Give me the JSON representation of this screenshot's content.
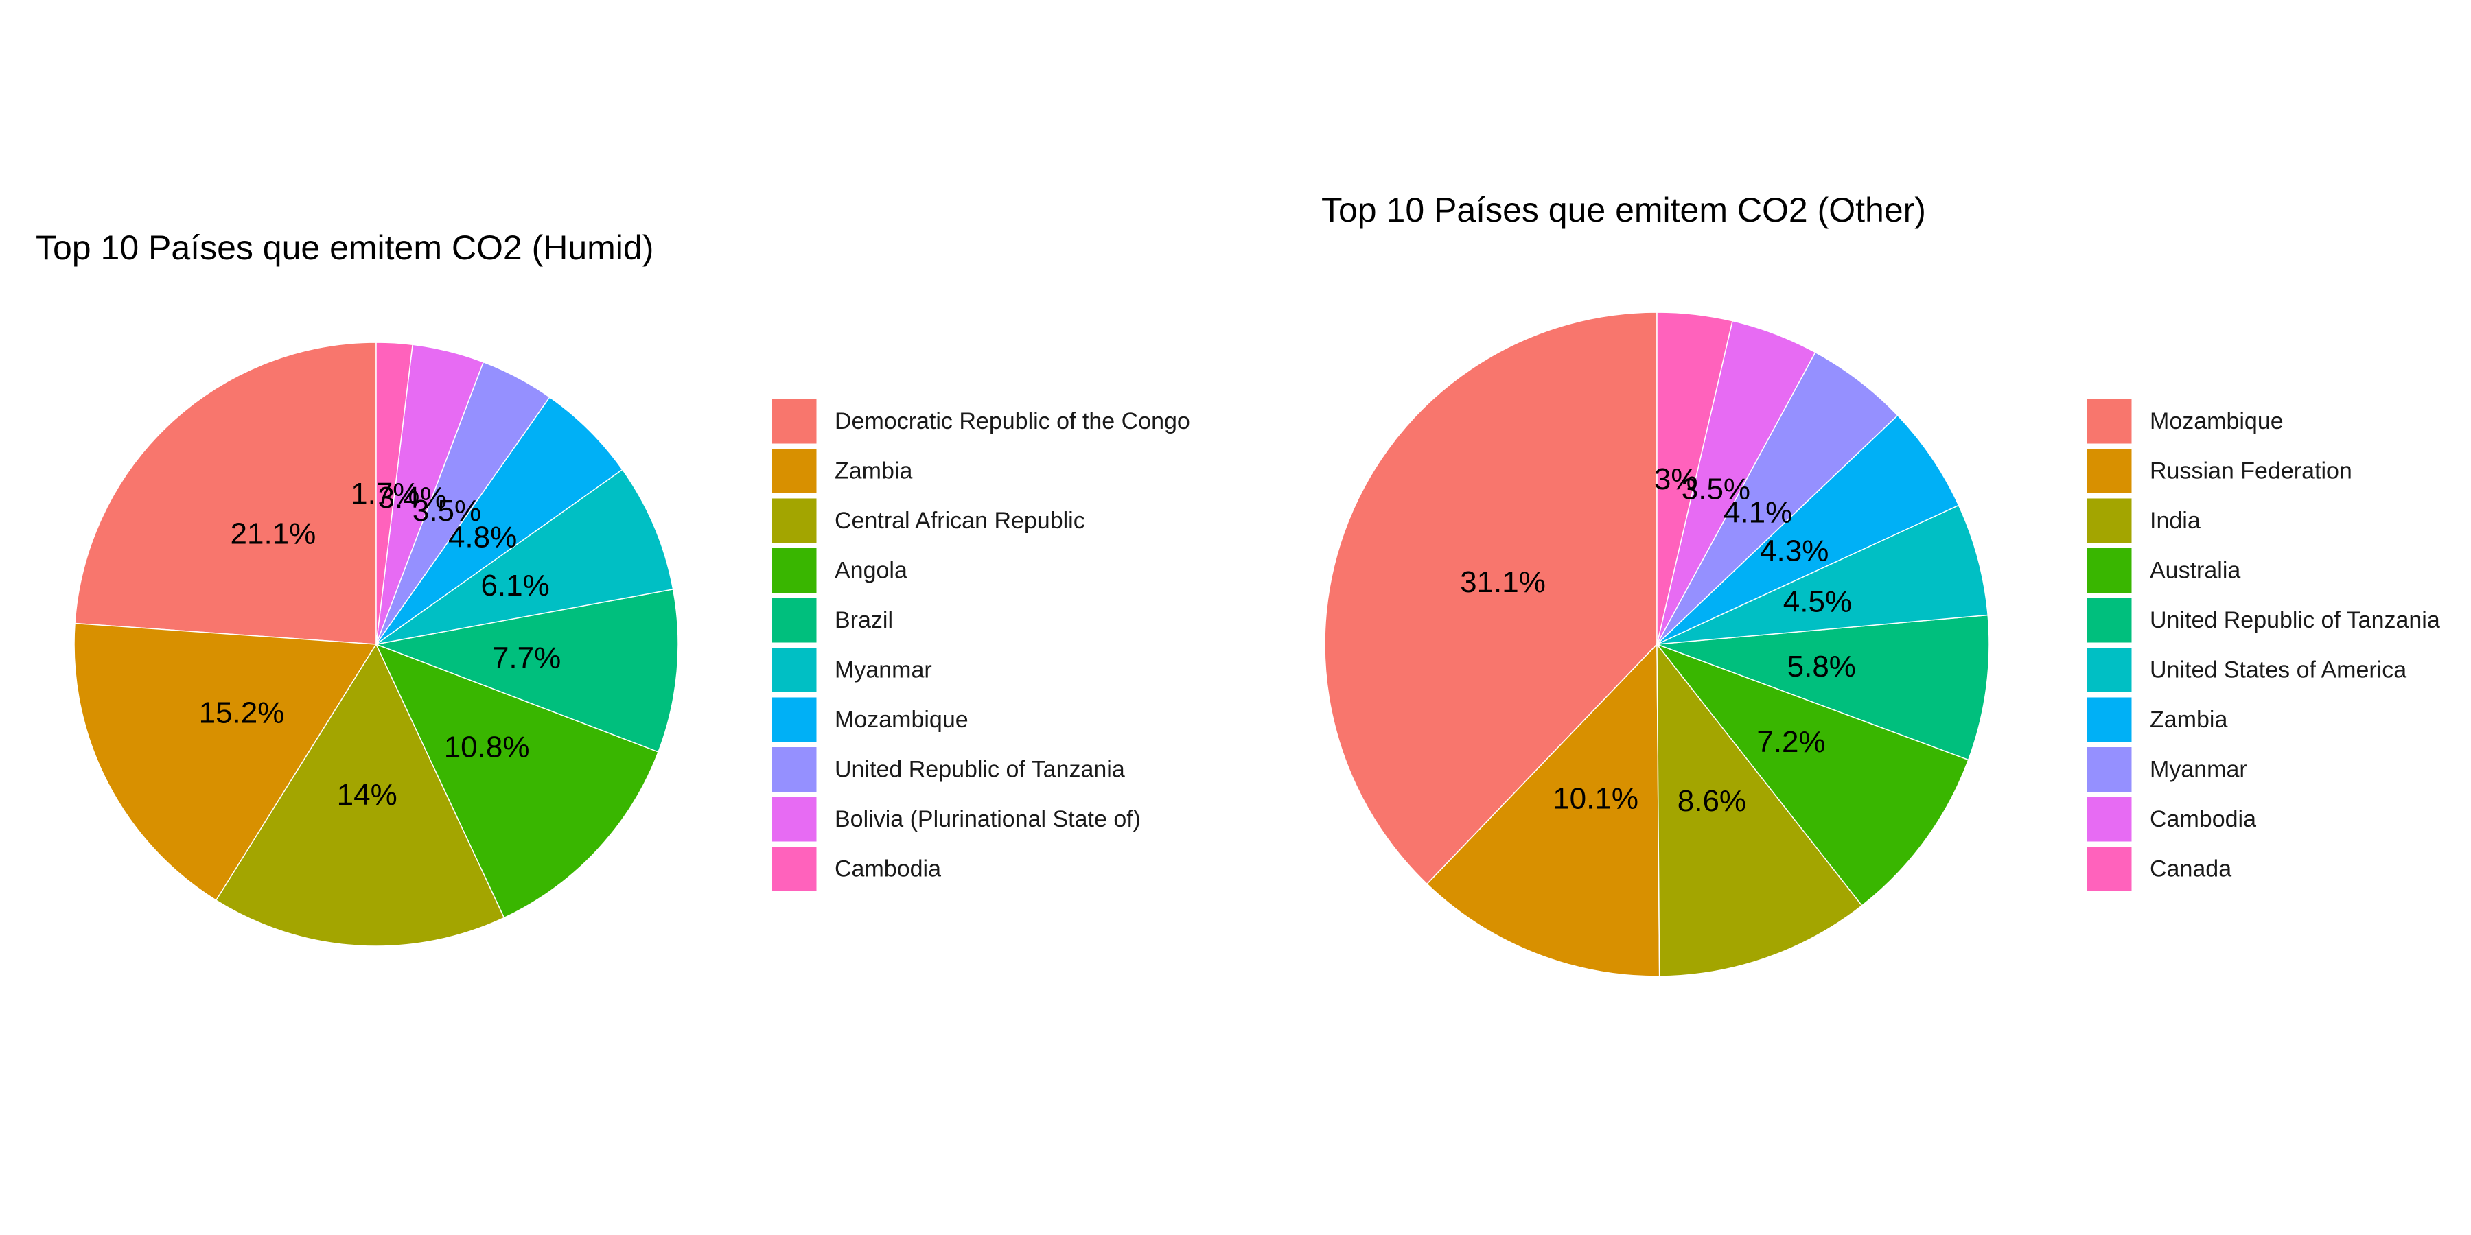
{
  "chart_data": [
    {
      "type": "pie",
      "title": "Top 10 Países que emitem CO2 (Humid)",
      "categories": [
        "Democratic Republic of the Congo",
        "Zambia",
        "Central African Republic",
        "Angola",
        "Brazil",
        "Myanmar",
        "Mozambique",
        "United Republic of Tanzania",
        "Bolivia (Plurinational State of)",
        "Cambodia"
      ],
      "values": [
        21.1,
        15.2,
        14,
        10.8,
        7.7,
        6.1,
        4.8,
        3.5,
        3.4,
        1.7
      ],
      "labels": [
        "21.1%",
        "15.2%",
        "14%",
        "10.8%",
        "7.7%",
        "6.1%",
        "4.8%",
        "3.5%",
        "3.4%",
        "1.7%"
      ],
      "colors": [
        "#F8766D",
        "#D89000",
        "#A3A500",
        "#39B600",
        "#00BF7D",
        "#00BFC4",
        "#00B0F6",
        "#9590FF",
        "#E76BF3",
        "#FF62BC"
      ],
      "legend": "right"
    },
    {
      "type": "pie",
      "title": "Top 10 Países que emitem CO2 (Other)",
      "categories": [
        "Mozambique",
        "Russian Federation",
        "India",
        "Australia",
        "United Republic of Tanzania",
        "United States of America",
        "Zambia",
        "Myanmar",
        "Cambodia",
        "Canada"
      ],
      "values": [
        31.1,
        10.1,
        8.6,
        7.2,
        5.8,
        4.5,
        4.3,
        4.1,
        3.5,
        3
      ],
      "labels": [
        "31.1%",
        "10.1%",
        "8.6%",
        "7.2%",
        "5.8%",
        "4.5%",
        "4.3%",
        "4.1%",
        "3.5%",
        "3%"
      ],
      "colors": [
        "#F8766D",
        "#D89000",
        "#A3A500",
        "#39B600",
        "#00BF7D",
        "#00BFC4",
        "#00B0F6",
        "#9590FF",
        "#E76BF3",
        "#FF62BC"
      ],
      "legend": "right"
    }
  ]
}
